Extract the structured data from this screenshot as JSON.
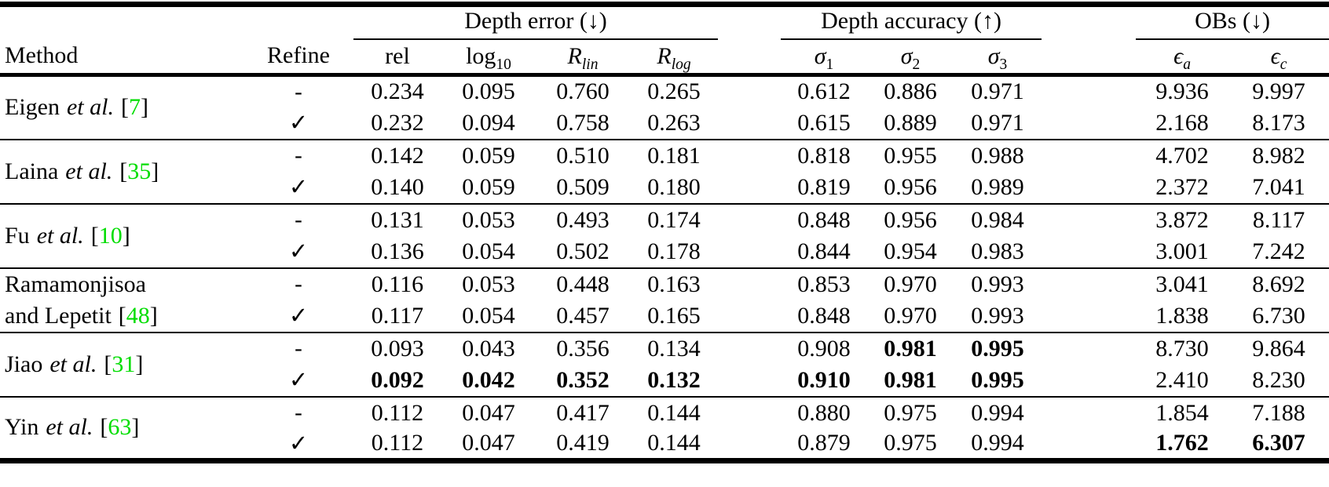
{
  "labels": {
    "method": "Method",
    "refine": "Refine",
    "etal": "et al.",
    "lbracket": "[",
    "rbracket": "]"
  },
  "citation_color": "#00dd00",
  "groups": [
    {
      "label": "Depth error (↓)",
      "span": 4
    },
    {
      "label": "Depth accuracy (↑)",
      "span": 3
    },
    {
      "label": "OBs (↓)",
      "span": 2
    }
  ],
  "columns": [
    {
      "key": "rel",
      "base": "rel",
      "sub": "",
      "italic": false,
      "sub_italic": false
    },
    {
      "key": "log10",
      "base": "log",
      "sub": "10",
      "italic": false,
      "sub_italic": false
    },
    {
      "key": "r-lin",
      "base": "R",
      "sub": "lin",
      "italic": true,
      "sub_italic": true
    },
    {
      "key": "r-log",
      "base": "R",
      "sub": "log",
      "italic": true,
      "sub_italic": true
    },
    {
      "key": "sigma1",
      "base": "σ",
      "sub": "1",
      "italic": true,
      "sub_italic": false
    },
    {
      "key": "sigma2",
      "base": "σ",
      "sub": "2",
      "italic": true,
      "sub_italic": false
    },
    {
      "key": "sigma3",
      "base": "σ",
      "sub": "3",
      "italic": true,
      "sub_italic": false
    },
    {
      "key": "eps-a",
      "base": "ϵ",
      "sub": "a",
      "italic": true,
      "sub_italic": true
    },
    {
      "key": "eps-c",
      "base": "ϵ",
      "sub": "c",
      "italic": true,
      "sub_italic": true
    }
  ],
  "methods": [
    {
      "name_lines": [
        "Eigen"
      ],
      "etal": true,
      "cite": "7",
      "rows": [
        {
          "refine": "-",
          "values": [
            "0.234",
            "0.095",
            "0.760",
            "0.265",
            "0.612",
            "0.886",
            "0.971",
            "9.936",
            "9.997"
          ],
          "bold": [
            false,
            false,
            false,
            false,
            false,
            false,
            false,
            false,
            false
          ]
        },
        {
          "refine": "✓",
          "values": [
            "0.232",
            "0.094",
            "0.758",
            "0.263",
            "0.615",
            "0.889",
            "0.971",
            "2.168",
            "8.173"
          ],
          "bold": [
            false,
            false,
            false,
            false,
            false,
            false,
            false,
            false,
            false
          ]
        }
      ]
    },
    {
      "name_lines": [
        "Laina"
      ],
      "etal": true,
      "cite": "35",
      "rows": [
        {
          "refine": "-",
          "values": [
            "0.142",
            "0.059",
            "0.510",
            "0.181",
            "0.818",
            "0.955",
            "0.988",
            "4.702",
            "8.982"
          ],
          "bold": [
            false,
            false,
            false,
            false,
            false,
            false,
            false,
            false,
            false
          ]
        },
        {
          "refine": "✓",
          "values": [
            "0.140",
            "0.059",
            "0.509",
            "0.180",
            "0.819",
            "0.956",
            "0.989",
            "2.372",
            "7.041"
          ],
          "bold": [
            false,
            false,
            false,
            false,
            false,
            false,
            false,
            false,
            false
          ]
        }
      ]
    },
    {
      "name_lines": [
        "Fu"
      ],
      "etal": true,
      "cite": "10",
      "rows": [
        {
          "refine": "-",
          "values": [
            "0.131",
            "0.053",
            "0.493",
            "0.174",
            "0.848",
            "0.956",
            "0.984",
            "3.872",
            "8.117"
          ],
          "bold": [
            false,
            false,
            false,
            false,
            false,
            false,
            false,
            false,
            false
          ]
        },
        {
          "refine": "✓",
          "values": [
            "0.136",
            "0.054",
            "0.502",
            "0.178",
            "0.844",
            "0.954",
            "0.983",
            "3.001",
            "7.242"
          ],
          "bold": [
            false,
            false,
            false,
            false,
            false,
            false,
            false,
            false,
            false
          ]
        }
      ]
    },
    {
      "name_lines": [
        "Ramamonjisoa",
        "and Lepetit"
      ],
      "etal": false,
      "cite": "48",
      "rows": [
        {
          "refine": "-",
          "values": [
            "0.116",
            "0.053",
            "0.448",
            "0.163",
            "0.853",
            "0.970",
            "0.993",
            "3.041",
            "8.692"
          ],
          "bold": [
            false,
            false,
            false,
            false,
            false,
            false,
            false,
            false,
            false
          ]
        },
        {
          "refine": "✓",
          "values": [
            "0.117",
            "0.054",
            "0.457",
            "0.165",
            "0.848",
            "0.970",
            "0.993",
            "1.838",
            "6.730"
          ],
          "bold": [
            false,
            false,
            false,
            false,
            false,
            false,
            false,
            false,
            false
          ]
        }
      ]
    },
    {
      "name_lines": [
        "Jiao"
      ],
      "etal": true,
      "cite": "31",
      "rows": [
        {
          "refine": "-",
          "values": [
            "0.093",
            "0.043",
            "0.356",
            "0.134",
            "0.908",
            "0.981",
            "0.995",
            "8.730",
            "9.864"
          ],
          "bold": [
            false,
            false,
            false,
            false,
            false,
            true,
            true,
            false,
            false
          ]
        },
        {
          "refine": "✓",
          "values": [
            "0.092",
            "0.042",
            "0.352",
            "0.132",
            "0.910",
            "0.981",
            "0.995",
            "2.410",
            "8.230"
          ],
          "bold": [
            true,
            true,
            true,
            true,
            true,
            true,
            true,
            false,
            false
          ]
        }
      ]
    },
    {
      "name_lines": [
        "Yin"
      ],
      "etal": true,
      "cite": "63",
      "rows": [
        {
          "refine": "-",
          "values": [
            "0.112",
            "0.047",
            "0.417",
            "0.144",
            "0.880",
            "0.975",
            "0.994",
            "1.854",
            "7.188"
          ],
          "bold": [
            false,
            false,
            false,
            false,
            false,
            false,
            false,
            false,
            false
          ]
        },
        {
          "refine": "✓",
          "values": [
            "0.112",
            "0.047",
            "0.419",
            "0.144",
            "0.879",
            "0.975",
            "0.994",
            "1.762",
            "6.307"
          ],
          "bold": [
            false,
            false,
            false,
            false,
            false,
            false,
            false,
            true,
            true
          ]
        }
      ]
    }
  ]
}
